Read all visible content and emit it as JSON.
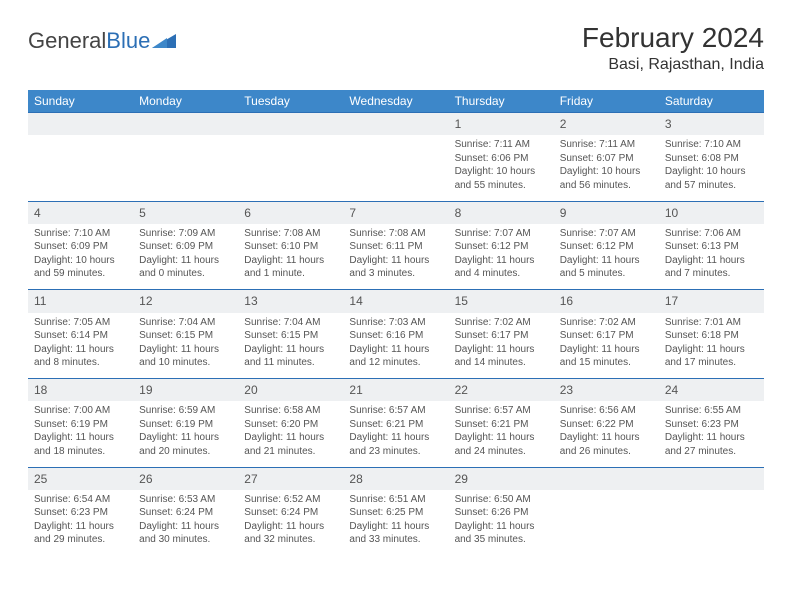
{
  "logo": {
    "text1": "General",
    "text2": "Blue"
  },
  "title": "February 2024",
  "location": "Basi, Rajasthan, India",
  "colors": {
    "header_bg": "#3d87c9",
    "header_text": "#ffffff",
    "daynum_bg": "#eef0f2",
    "border": "#2c6fb5",
    "text": "#555555",
    "logo_gray": "#444444",
    "logo_blue": "#2c6fb5"
  },
  "weekdays": [
    "Sunday",
    "Monday",
    "Tuesday",
    "Wednesday",
    "Thursday",
    "Friday",
    "Saturday"
  ],
  "weeks": [
    {
      "nums": [
        "",
        "",
        "",
        "",
        "1",
        "2",
        "3"
      ],
      "details": [
        null,
        null,
        null,
        null,
        {
          "sr": "Sunrise: 7:11 AM",
          "ss": "Sunset: 6:06 PM",
          "dl": "Daylight: 10 hours and 55 minutes."
        },
        {
          "sr": "Sunrise: 7:11 AM",
          "ss": "Sunset: 6:07 PM",
          "dl": "Daylight: 10 hours and 56 minutes."
        },
        {
          "sr": "Sunrise: 7:10 AM",
          "ss": "Sunset: 6:08 PM",
          "dl": "Daylight: 10 hours and 57 minutes."
        }
      ]
    },
    {
      "nums": [
        "4",
        "5",
        "6",
        "7",
        "8",
        "9",
        "10"
      ],
      "details": [
        {
          "sr": "Sunrise: 7:10 AM",
          "ss": "Sunset: 6:09 PM",
          "dl": "Daylight: 10 hours and 59 minutes."
        },
        {
          "sr": "Sunrise: 7:09 AM",
          "ss": "Sunset: 6:09 PM",
          "dl": "Daylight: 11 hours and 0 minutes."
        },
        {
          "sr": "Sunrise: 7:08 AM",
          "ss": "Sunset: 6:10 PM",
          "dl": "Daylight: 11 hours and 1 minute."
        },
        {
          "sr": "Sunrise: 7:08 AM",
          "ss": "Sunset: 6:11 PM",
          "dl": "Daylight: 11 hours and 3 minutes."
        },
        {
          "sr": "Sunrise: 7:07 AM",
          "ss": "Sunset: 6:12 PM",
          "dl": "Daylight: 11 hours and 4 minutes."
        },
        {
          "sr": "Sunrise: 7:07 AM",
          "ss": "Sunset: 6:12 PM",
          "dl": "Daylight: 11 hours and 5 minutes."
        },
        {
          "sr": "Sunrise: 7:06 AM",
          "ss": "Sunset: 6:13 PM",
          "dl": "Daylight: 11 hours and 7 minutes."
        }
      ]
    },
    {
      "nums": [
        "11",
        "12",
        "13",
        "14",
        "15",
        "16",
        "17"
      ],
      "details": [
        {
          "sr": "Sunrise: 7:05 AM",
          "ss": "Sunset: 6:14 PM",
          "dl": "Daylight: 11 hours and 8 minutes."
        },
        {
          "sr": "Sunrise: 7:04 AM",
          "ss": "Sunset: 6:15 PM",
          "dl": "Daylight: 11 hours and 10 minutes."
        },
        {
          "sr": "Sunrise: 7:04 AM",
          "ss": "Sunset: 6:15 PM",
          "dl": "Daylight: 11 hours and 11 minutes."
        },
        {
          "sr": "Sunrise: 7:03 AM",
          "ss": "Sunset: 6:16 PM",
          "dl": "Daylight: 11 hours and 12 minutes."
        },
        {
          "sr": "Sunrise: 7:02 AM",
          "ss": "Sunset: 6:17 PM",
          "dl": "Daylight: 11 hours and 14 minutes."
        },
        {
          "sr": "Sunrise: 7:02 AM",
          "ss": "Sunset: 6:17 PM",
          "dl": "Daylight: 11 hours and 15 minutes."
        },
        {
          "sr": "Sunrise: 7:01 AM",
          "ss": "Sunset: 6:18 PM",
          "dl": "Daylight: 11 hours and 17 minutes."
        }
      ]
    },
    {
      "nums": [
        "18",
        "19",
        "20",
        "21",
        "22",
        "23",
        "24"
      ],
      "details": [
        {
          "sr": "Sunrise: 7:00 AM",
          "ss": "Sunset: 6:19 PM",
          "dl": "Daylight: 11 hours and 18 minutes."
        },
        {
          "sr": "Sunrise: 6:59 AM",
          "ss": "Sunset: 6:19 PM",
          "dl": "Daylight: 11 hours and 20 minutes."
        },
        {
          "sr": "Sunrise: 6:58 AM",
          "ss": "Sunset: 6:20 PM",
          "dl": "Daylight: 11 hours and 21 minutes."
        },
        {
          "sr": "Sunrise: 6:57 AM",
          "ss": "Sunset: 6:21 PM",
          "dl": "Daylight: 11 hours and 23 minutes."
        },
        {
          "sr": "Sunrise: 6:57 AM",
          "ss": "Sunset: 6:21 PM",
          "dl": "Daylight: 11 hours and 24 minutes."
        },
        {
          "sr": "Sunrise: 6:56 AM",
          "ss": "Sunset: 6:22 PM",
          "dl": "Daylight: 11 hours and 26 minutes."
        },
        {
          "sr": "Sunrise: 6:55 AM",
          "ss": "Sunset: 6:23 PM",
          "dl": "Daylight: 11 hours and 27 minutes."
        }
      ]
    },
    {
      "nums": [
        "25",
        "26",
        "27",
        "28",
        "29",
        "",
        ""
      ],
      "details": [
        {
          "sr": "Sunrise: 6:54 AM",
          "ss": "Sunset: 6:23 PM",
          "dl": "Daylight: 11 hours and 29 minutes."
        },
        {
          "sr": "Sunrise: 6:53 AM",
          "ss": "Sunset: 6:24 PM",
          "dl": "Daylight: 11 hours and 30 minutes."
        },
        {
          "sr": "Sunrise: 6:52 AM",
          "ss": "Sunset: 6:24 PM",
          "dl": "Daylight: 11 hours and 32 minutes."
        },
        {
          "sr": "Sunrise: 6:51 AM",
          "ss": "Sunset: 6:25 PM",
          "dl": "Daylight: 11 hours and 33 minutes."
        },
        {
          "sr": "Sunrise: 6:50 AM",
          "ss": "Sunset: 6:26 PM",
          "dl": "Daylight: 11 hours and 35 minutes."
        },
        null,
        null
      ]
    }
  ]
}
